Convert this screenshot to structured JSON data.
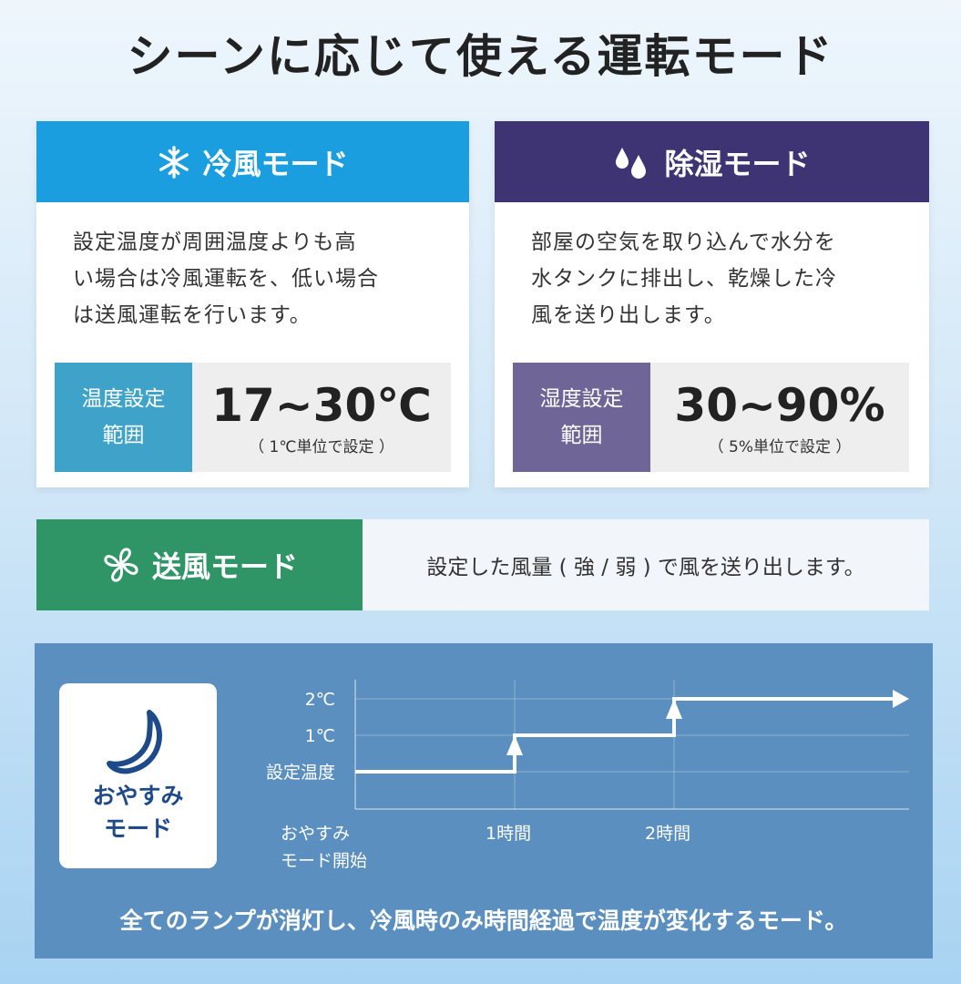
{
  "title": "シーンに応じて使える運転モード",
  "colors": {
    "cool": "#1a9ee0",
    "cool_label": "#3fa3c9",
    "dry": "#3e3474",
    "dry_label": "#6f6596",
    "fan": "#2f9466",
    "night": "#5b8fbf"
  },
  "cool": {
    "icon": "snowflake-icon",
    "title": "冷風モード",
    "desc": [
      "設定温度が周囲温度よりも高",
      "い場合は冷風運転を、低い場合",
      "は送風運転を行います。"
    ],
    "range_label": [
      "温度設定",
      "範囲"
    ],
    "range_value": "17~30℃",
    "range_note": "（ 1℃単位で設定 ）"
  },
  "dry": {
    "icon": "water-drops-icon",
    "title": "除湿モード",
    "desc": [
      "部屋の空気を取り込んで水分を",
      "水タンクに排出し、乾燥した冷",
      "風を送り出します。"
    ],
    "range_label": [
      "湿度設定",
      "範囲"
    ],
    "range_value": "30~90%",
    "range_note": "（ 5%単位で設定 ）"
  },
  "fan": {
    "icon": "fan-icon",
    "title": "送風モード",
    "desc": "設定した風量 ( 強 / 弱 ) で風を送り出します。"
  },
  "night": {
    "icon": "moon-icon",
    "title": [
      "おやすみ",
      "モード"
    ],
    "footer": "全てのランプが消灯し、冷風時のみ時間経過で温度が変化するモード。"
  },
  "chart_data": {
    "type": "line",
    "step": true,
    "y_ticks": [
      "設定温度",
      "1℃",
      "2℃"
    ],
    "x_ticks": [
      "おやすみ\nモード開始",
      "1時間",
      "2時間"
    ],
    "x_labels": {
      "start": [
        "おやすみ",
        "モード開始"
      ],
      "h1": "1時間",
      "h2": "2時間"
    },
    "x": [
      0,
      1,
      2,
      3
    ],
    "y": [
      0,
      1,
      2,
      2
    ],
    "grid": true
  }
}
